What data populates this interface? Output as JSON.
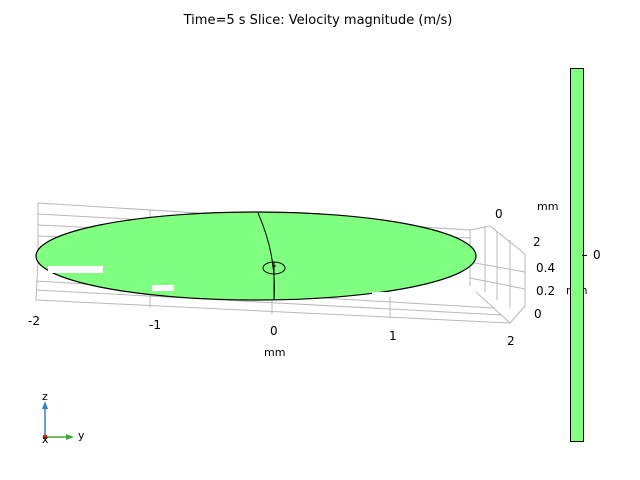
{
  "title": "Time=5 s    Slice: Velocity magnitude (m/s)",
  "axes": {
    "x_ticks": [
      "-2",
      "-1",
      "0",
      "1",
      "2"
    ],
    "x_unit": "mm",
    "depth_ticks": [
      "2",
      "0"
    ],
    "depth_unit": "mm",
    "z_ticks": [
      "0.4",
      "0.2",
      "0"
    ],
    "z_unit": "mm"
  },
  "triad": {
    "z": "z",
    "y": "y",
    "x": "x"
  },
  "colorbar": {
    "tick_label": "0",
    "color": "#80ff80"
  },
  "colors": {
    "slice_fill": "#80ff80",
    "grid": "#b8b8b8",
    "outline": "#000000",
    "triad_z": "#3a7fc4",
    "triad_y": "#3aa83a",
    "triad_x": "#d02020"
  }
}
